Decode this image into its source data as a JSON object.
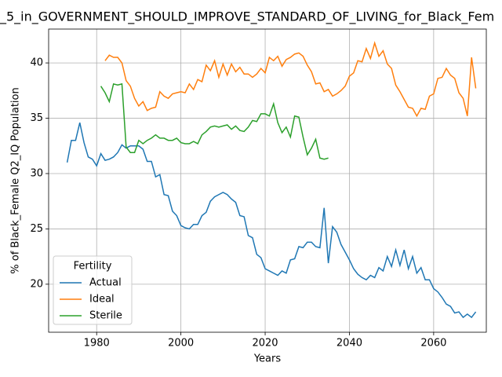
{
  "chart_data": {
    "type": "line",
    "title": "_5_in_GOVERNMENT_SHOULD_IMPROVE_STANDARD_OF_LIVING_for_Black_Fem",
    "x_label": "Years",
    "y_label": "% of Black_Female Q2_IQ Population",
    "legend_title": "Fertility",
    "legend": "lower left",
    "grid": true,
    "xlim": [
      1968.6,
      2072.5
    ],
    "ylim": [
      15.66,
      43.06
    ],
    "xticks": [
      1980,
      2000,
      2020,
      2040,
      2060
    ],
    "yticks": [
      20,
      25,
      30,
      35,
      40
    ],
    "x": [
      1973,
      1974,
      1975,
      1976,
      1977,
      1978,
      1979,
      1980,
      1981,
      1982,
      1983,
      1984,
      1985,
      1986,
      1987,
      1988,
      1989,
      1990,
      1991,
      1992,
      1993,
      1994,
      1995,
      1996,
      1997,
      1998,
      1999,
      2000,
      2001,
      2002,
      2003,
      2004,
      2005,
      2006,
      2007,
      2008,
      2009,
      2010,
      2011,
      2012,
      2013,
      2014,
      2015,
      2016,
      2017,
      2018,
      2019,
      2020,
      2021,
      2022,
      2023,
      2024,
      2025,
      2026,
      2027,
      2028,
      2029,
      2030,
      2031,
      2032,
      2033,
      2034,
      2035,
      2036,
      2037,
      2038,
      2039,
      2040,
      2041,
      2042,
      2043,
      2044,
      2045,
      2046,
      2047,
      2048,
      2049,
      2050,
      2051,
      2052,
      2053,
      2054,
      2055,
      2056,
      2057,
      2058,
      2059,
      2060,
      2061,
      2062,
      2063,
      2064,
      2065,
      2066,
      2067,
      2068,
      2069,
      2070
    ],
    "series": [
      {
        "name": "Actual",
        "color": "#1f77b4",
        "values": [
          31.0,
          33.0,
          33.0,
          34.6,
          32.8,
          31.5,
          31.3,
          30.7,
          31.8,
          31.2,
          31.3,
          31.5,
          31.9,
          32.6,
          32.3,
          32.5,
          32.5,
          32.5,
          32.2,
          31.1,
          31.1,
          29.7,
          29.9,
          28.1,
          28.0,
          26.6,
          26.2,
          25.3,
          25.1,
          25.0,
          25.4,
          25.4,
          26.2,
          26.5,
          27.5,
          27.9,
          28.1,
          28.3,
          28.1,
          27.7,
          27.4,
          26.2,
          26.1,
          24.4,
          24.2,
          22.7,
          22.4,
          21.4,
          21.2,
          21.0,
          20.8,
          21.2,
          21.0,
          22.2,
          22.3,
          23.4,
          23.3,
          23.8,
          23.8,
          23.4,
          23.3,
          26.9,
          21.9,
          25.2,
          24.7,
          23.6,
          22.9,
          22.2,
          21.4,
          20.9,
          20.6,
          20.4,
          20.8,
          20.6,
          21.5,
          21.2,
          22.5,
          21.6,
          23.1,
          21.7,
          23.1,
          21.4,
          22.5,
          21.0,
          21.5,
          20.4,
          20.4,
          19.6,
          19.3,
          18.8,
          18.2,
          18.0,
          17.4,
          17.5,
          17.0,
          17.3,
          17.0,
          17.5
        ]
      },
      {
        "name": "Ideal",
        "color": "#ff7f0e",
        "values": [
          null,
          null,
          null,
          null,
          null,
          null,
          null,
          null,
          null,
          40.2,
          40.7,
          40.5,
          40.5,
          40.0,
          38.4,
          37.9,
          36.8,
          36.1,
          36.5,
          35.7,
          35.9,
          36.0,
          37.4,
          37.0,
          36.8,
          37.2,
          37.3,
          37.4,
          37.3,
          38.1,
          37.6,
          38.5,
          38.3,
          39.8,
          39.3,
          40.2,
          38.7,
          39.9,
          38.9,
          39.9,
          39.2,
          39.6,
          39.0,
          39.0,
          38.7,
          39.0,
          39.5,
          39.1,
          40.5,
          40.2,
          40.6,
          39.7,
          40.3,
          40.5,
          40.8,
          40.9,
          40.6,
          39.8,
          39.2,
          38.1,
          38.2,
          37.4,
          37.6,
          37.0,
          37.2,
          37.5,
          37.9,
          38.8,
          39.1,
          40.2,
          40.1,
          41.3,
          40.4,
          41.8,
          40.6,
          41.1,
          39.9,
          39.5,
          38.0,
          37.4,
          36.7,
          36.0,
          35.9,
          35.2,
          35.9,
          35.8,
          37.0,
          37.2,
          38.6,
          38.7,
          39.5,
          38.9,
          38.6,
          37.3,
          36.8,
          35.2,
          40.5,
          37.7
        ]
      },
      {
        "name": "Sterile",
        "color": "#2ca02c",
        "values": [
          null,
          null,
          null,
          null,
          null,
          null,
          null,
          null,
          37.9,
          37.3,
          36.5,
          38.1,
          38.0,
          38.1,
          32.4,
          31.9,
          31.9,
          33.0,
          32.7,
          33.0,
          33.2,
          33.5,
          33.2,
          33.2,
          33.0,
          33.0,
          33.2,
          32.8,
          32.7,
          32.7,
          32.9,
          32.7,
          33.5,
          33.8,
          34.2,
          34.3,
          34.2,
          34.3,
          34.4,
          34.0,
          34.3,
          33.9,
          33.8,
          34.2,
          34.8,
          34.7,
          35.4,
          35.4,
          35.2,
          36.3,
          34.6,
          33.7,
          34.2,
          33.3,
          35.2,
          35.1,
          33.3,
          31.7,
          32.3,
          33.1,
          31.4,
          31.3,
          31.4,
          null,
          null,
          null,
          null,
          null,
          null,
          null,
          null,
          null,
          null,
          null,
          null,
          null,
          null,
          null,
          null,
          null,
          null,
          null,
          null,
          null,
          null,
          null,
          null,
          null,
          null,
          null,
          null,
          null,
          null,
          null,
          null,
          null,
          null,
          null
        ]
      }
    ]
  }
}
